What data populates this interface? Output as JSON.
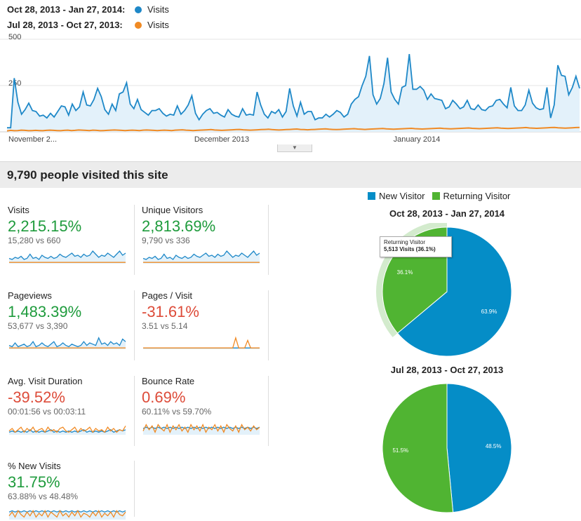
{
  "legend": {
    "current_range": "Oct 28, 2013 - Jan 27, 2014:",
    "current_series": "Visits",
    "previous_range": "Jul 28, 2013 - Oct 27, 2013:",
    "previous_series": "Visits"
  },
  "colors": {
    "current": "#1e88c8",
    "previous": "#f08a24",
    "new_visitor": "#058dc7",
    "returning_visitor": "#50b432",
    "up": "#1e9b3c",
    "down": "#dd4b39"
  },
  "chart_data": {
    "type": "area",
    "ylim": [
      0,
      500
    ],
    "y_ticks": [
      "500",
      "250"
    ],
    "x_ticks": [
      "November 2...",
      "December 2013",
      "January 2014"
    ],
    "series": [
      {
        "name": "Visits",
        "range": "Oct 28, 2013 - Jan 27, 2014",
        "values": [
          22,
          22,
          290,
          160,
          95,
          120,
          155,
          115,
          110,
          85,
          90,
          75,
          100,
          80,
          110,
          140,
          135,
          90,
          150,
          115,
          135,
          215,
          145,
          140,
          175,
          235,
          190,
          120,
          95,
          150,
          115,
          205,
          215,
          265,
          150,
          125,
          175,
          120,
          105,
          90,
          115,
          115,
          125,
          100,
          85,
          95,
          90,
          140,
          95,
          115,
          145,
          195,
          100,
          65,
          95,
          115,
          125,
          100,
          105,
          90,
          80,
          120,
          95,
          85,
          80,
          125,
          90,
          95,
          90,
          215,
          145,
          95,
          75,
          110,
          100,
          120,
          80,
          110,
          235,
          140,
          85,
          160,
          95,
          110,
          110,
          65,
          75,
          75,
          95,
          80,
          95,
          115,
          105,
          80,
          95,
          150,
          175,
          190,
          250,
          300,
          410,
          200,
          150,
          180,
          260,
          400,
          215,
          175,
          150,
          240,
          250,
          420,
          230,
          230,
          245,
          225,
          175,
          205,
          180,
          175,
          170,
          125,
          135,
          170,
          150,
          125,
          135,
          170,
          125,
          120,
          145,
          120,
          115,
          135,
          140,
          170,
          175,
          150,
          130,
          240,
          140,
          115,
          115,
          145,
          225,
          155,
          130,
          120,
          125,
          240,
          75,
          145,
          360,
          305,
          300,
          200,
          240,
          300,
          235
        ],
        "color": "#1e88c8"
      },
      {
        "name": "Visits",
        "range": "Jul 28, 2013 - Oct 27, 2013",
        "values": [
          5,
          8,
          6,
          7,
          9,
          8,
          6,
          7,
          8,
          7,
          6,
          8,
          9,
          8,
          7,
          6,
          8,
          9,
          7,
          8,
          10,
          9,
          8,
          7,
          9,
          8,
          6,
          7,
          8,
          9,
          10,
          9,
          8,
          7,
          8,
          9,
          8,
          7,
          9,
          10,
          9,
          8,
          7,
          8,
          9,
          8,
          7,
          9,
          10,
          11,
          9,
          8,
          7,
          8,
          9,
          10,
          11,
          12,
          10,
          9,
          8,
          9,
          10,
          11,
          12,
          13,
          11,
          10,
          9,
          10,
          11,
          12,
          13,
          14,
          12,
          11,
          10,
          11,
          12,
          13,
          14,
          15,
          13,
          12,
          11,
          12,
          13,
          14,
          15,
          16,
          14,
          13,
          12,
          13,
          14,
          15,
          16,
          17,
          15,
          14,
          13,
          14,
          15,
          16,
          17,
          18,
          16,
          15,
          14,
          15,
          16,
          17,
          18,
          19,
          17,
          16,
          15,
          16,
          17,
          18,
          19,
          20,
          18,
          17,
          16,
          17,
          18,
          19,
          20,
          21,
          19,
          18,
          17,
          18,
          19,
          20,
          21,
          22,
          20,
          19,
          18,
          19,
          20,
          21,
          22,
          23,
          21,
          20,
          19,
          20,
          21,
          22,
          23,
          24,
          22,
          21,
          20,
          21,
          22,
          23,
          24
        ],
        "color": "#f08a24"
      }
    ]
  },
  "toggle_icon": "chevron-down-icon",
  "summary": {
    "title": "9,790 people visited this site"
  },
  "metrics": [
    {
      "label": "Visits",
      "pct": "2,215.15%",
      "direction": "up",
      "cmp": "15,280 vs 660",
      "spark_current": [
        5,
        4,
        6,
        5,
        7,
        4,
        5,
        9,
        5,
        6,
        4,
        8,
        6,
        5,
        7,
        5,
        6,
        9,
        7,
        6,
        8,
        10,
        7,
        8,
        6,
        9,
        7,
        8,
        12,
        9,
        6,
        8,
        7,
        10,
        8,
        6,
        9,
        12,
        8,
        10
      ],
      "spark_previous": [
        1,
        1,
        1,
        1,
        1,
        1,
        1,
        1,
        1,
        1,
        1,
        1,
        1,
        1,
        1,
        1,
        1,
        1,
        1,
        1,
        1,
        1,
        1,
        1,
        1,
        1,
        1,
        1,
        1,
        1,
        1,
        1,
        1,
        1,
        1,
        1,
        1,
        1,
        1,
        1
      ]
    },
    {
      "label": "Unique Visitors",
      "pct": "2,813.69%",
      "direction": "up",
      "cmp": "9,790 vs 336",
      "spark_current": [
        5,
        4,
        6,
        5,
        7,
        4,
        5,
        9,
        5,
        6,
        4,
        8,
        6,
        5,
        7,
        5,
        6,
        9,
        7,
        6,
        8,
        10,
        7,
        8,
        6,
        9,
        7,
        8,
        12,
        9,
        6,
        8,
        7,
        10,
        8,
        6,
        9,
        12,
        8,
        10
      ],
      "spark_previous": [
        1,
        1,
        1,
        1,
        1,
        1,
        1,
        1,
        1,
        1,
        1,
        1,
        1,
        1,
        1,
        1,
        1,
        1,
        1,
        1,
        1,
        1,
        1,
        1,
        1,
        1,
        1,
        1,
        1,
        1,
        1,
        1,
        1,
        1,
        1,
        1,
        1,
        1,
        1,
        1
      ]
    },
    {
      "label": "Pageviews",
      "pct": "1,483.39%",
      "direction": "up",
      "cmp": "53,677 vs 3,390",
      "spark_current": [
        3,
        2,
        5,
        2,
        3,
        4,
        2,
        3,
        6,
        2,
        3,
        5,
        3,
        2,
        4,
        6,
        2,
        3,
        5,
        3,
        2,
        4,
        3,
        2,
        3,
        6,
        3,
        5,
        4,
        3,
        9,
        4,
        5,
        3,
        6,
        4,
        5,
        3,
        8,
        6
      ],
      "spark_previous": [
        1,
        1,
        1,
        1,
        1,
        1,
        1,
        1,
        1,
        1,
        1,
        1,
        1,
        1,
        1,
        1,
        1,
        1,
        1,
        1,
        1,
        1,
        1,
        1,
        1,
        1,
        1,
        1,
        1,
        1,
        1,
        1,
        1,
        1,
        1,
        1,
        1,
        1,
        1,
        1
      ]
    },
    {
      "label": "Pages / Visit",
      "pct": "-31.61%",
      "direction": "down",
      "cmp": "3.51 vs 5.14",
      "spark_current": [
        1,
        1,
        1,
        1,
        1,
        1,
        1,
        1,
        1,
        1,
        1,
        1,
        1,
        1,
        1,
        1,
        1,
        1,
        1,
        1,
        1,
        1,
        1,
        1,
        1,
        1,
        1,
        1,
        1,
        1,
        1,
        1,
        1,
        1,
        1,
        1,
        1,
        1,
        1,
        1
      ],
      "spark_previous": [
        1,
        1,
        1,
        1,
        1,
        1,
        1,
        1,
        1,
        1,
        1,
        1,
        1,
        1,
        1,
        1,
        1,
        1,
        1,
        1,
        1,
        1,
        1,
        1,
        1,
        1,
        1,
        1,
        1,
        1,
        1,
        9,
        1,
        1,
        1,
        7,
        1,
        1,
        1,
        1
      ]
    },
    {
      "label": "Avg. Visit Duration",
      "pct": "-39.52%",
      "direction": "down",
      "cmp": "00:01:56 vs 00:03:11",
      "spark_current": [
        2,
        3,
        2,
        3,
        2,
        3,
        2,
        4,
        2,
        3,
        2,
        3,
        2,
        3,
        4,
        2,
        3,
        2,
        3,
        2,
        3,
        2,
        3,
        2,
        3,
        4,
        2,
        3,
        2,
        3,
        2,
        3,
        2,
        3,
        4,
        2,
        3,
        4,
        3,
        4
      ],
      "spark_previous": [
        3,
        5,
        2,
        4,
        6,
        2,
        5,
        3,
        6,
        2,
        4,
        5,
        2,
        6,
        3,
        4,
        2,
        5,
        6,
        3,
        2,
        4,
        6,
        2,
        5,
        3,
        4,
        6,
        2,
        5,
        3,
        4,
        2,
        6,
        3,
        5,
        2,
        4,
        3,
        7
      ]
    },
    {
      "label": "Bounce Rate",
      "pct": "0.69%",
      "direction": "up_red",
      "cmp": "60.11% vs 59.70%",
      "spark_current": [
        5,
        6,
        5,
        6,
        5,
        6,
        5,
        6,
        5,
        6,
        5,
        6,
        5,
        6,
        5,
        6,
        5,
        6,
        5,
        6,
        5,
        6,
        5,
        6,
        5,
        6,
        5,
        6,
        5,
        6,
        5,
        6,
        5,
        6,
        5,
        6,
        5,
        6,
        5,
        6
      ],
      "spark_previous": [
        3,
        8,
        4,
        7,
        2,
        8,
        5,
        3,
        8,
        2,
        7,
        4,
        8,
        3,
        6,
        2,
        8,
        4,
        7,
        3,
        8,
        2,
        6,
        4,
        8,
        3,
        7,
        2,
        8,
        5,
        3,
        7,
        2,
        8,
        4,
        6,
        3,
        7,
        4,
        6
      ]
    },
    {
      "label": "% New Visits",
      "pct": "31.75%",
      "direction": "up",
      "cmp": "63.88% vs 48.48%",
      "spark_current": [
        6,
        7,
        6,
        7,
        6,
        7,
        6,
        7,
        6,
        7,
        6,
        7,
        6,
        7,
        6,
        7,
        6,
        7,
        6,
        7,
        6,
        7,
        6,
        7,
        6,
        7,
        6,
        7,
        6,
        7,
        6,
        7,
        6,
        7,
        6,
        7,
        6,
        7,
        6,
        7
      ],
      "spark_previous": [
        3,
        6,
        2,
        7,
        4,
        2,
        6,
        3,
        7,
        2,
        5,
        3,
        7,
        2,
        6,
        4,
        2,
        7,
        3,
        5,
        2,
        6,
        3,
        7,
        2,
        5,
        4,
        2,
        6,
        3,
        7,
        2,
        5,
        3,
        6,
        2,
        7,
        4,
        3,
        6
      ]
    }
  ],
  "pie_legend": {
    "new": "New Visitor",
    "returning": "Returning Visitor"
  },
  "pies": [
    {
      "title": "Oct 28, 2013 - Jan 27, 2014",
      "new_pct": 63.9,
      "returning_pct": 36.1,
      "new_label": "63.9%",
      "returning_label": "36.1%"
    },
    {
      "title": "Jul 28, 2013 - Oct 27, 2013",
      "new_pct": 48.5,
      "returning_pct": 51.5,
      "new_label": "48.5%",
      "returning_label": "51.5%"
    }
  ],
  "tooltip": {
    "title": "Returning Visitor",
    "value": "5,513 Visits (36.1%)"
  }
}
